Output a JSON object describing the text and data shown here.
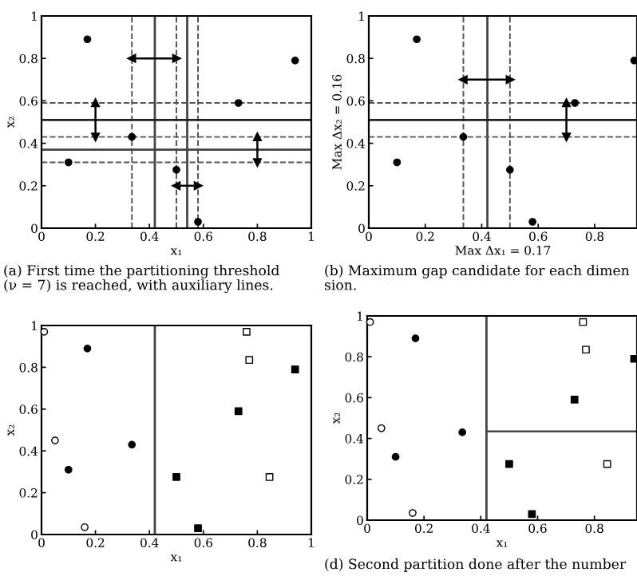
{
  "chart_data": [
    {
      "type": "scatter",
      "xlabel": "x₁",
      "ylabel": "x₂",
      "xlim": [
        0,
        1
      ],
      "ylim": [
        0,
        1
      ],
      "xticks": [
        0,
        0.2,
        0.4,
        0.6,
        0.8,
        1
      ],
      "yticks": [
        0,
        0.2,
        0.4,
        0.6,
        0.8,
        1
      ],
      "marker": "circle",
      "annotations": [
        "(a) First time the partitioning threshold\n(ν = 7) is reached, with auxiliary lines."
      ],
      "series": [
        {
          "color": "#000000",
          "x": [
            0.1,
            0.17,
            0.335,
            0.5,
            0.58,
            0.73,
            0.94
          ],
          "values": [
            0.31,
            0.89,
            0.43,
            0.275,
            0.03,
            0.59,
            0.79
          ]
        },
        {
          "type": "line",
          "marker": "triangle",
          "color": "#000000",
          "x": [
            0.335,
            0.5
          ],
          "values": [
            0.8,
            0.8
          ]
        },
        {
          "type": "line",
          "marker": "triangle",
          "color": "#000000",
          "x": [
            0.5,
            0.58
          ],
          "values": [
            0.2,
            0.2
          ]
        },
        {
          "type": "line",
          "marker": "triangle",
          "color": "#000000",
          "x": [
            0.2,
            0.2
          ],
          "values": [
            0.43,
            0.59
          ]
        },
        {
          "type": "line",
          "marker": "triangle",
          "color": "#000000",
          "x": [
            0.8,
            0.8
          ],
          "values": [
            0.31,
            0.43
          ]
        }
      ],
      "ref_lines": [
        {
          "axis": "x",
          "value": 0.42,
          "color": "#444444",
          "line_style": "solid"
        },
        {
          "axis": "x",
          "value": 0.54,
          "color": "#444444",
          "line_style": "solid"
        },
        {
          "axis": "x",
          "value": 0.335,
          "color": "#555555",
          "line_style": "dashed"
        },
        {
          "axis": "x",
          "value": 0.5,
          "color": "#555555",
          "line_style": "dashed"
        },
        {
          "axis": "x",
          "value": 0.58,
          "color": "#555555",
          "line_style": "dashed"
        },
        {
          "axis": "y",
          "value": 0.51,
          "color": "#222222",
          "line_style": "solid"
        },
        {
          "axis": "y",
          "value": 0.37,
          "color": "#444444",
          "line_style": "solid"
        },
        {
          "axis": "y",
          "value": 0.59,
          "color": "#555555",
          "line_style": "dashed"
        },
        {
          "axis": "y",
          "value": 0.43,
          "color": "#555555",
          "line_style": "dashed"
        },
        {
          "axis": "y",
          "value": 0.31,
          "color": "#555555",
          "line_style": "dashed"
        }
      ]
    },
    {
      "type": "scatter",
      "xlabel": "Max Δx₁ = 0.17",
      "ylabel": "Max Δx₂ = 0.16",
      "xlim": [
        0,
        0.95
      ],
      "ylim": [
        0,
        1
      ],
      "xticks": [
        0,
        0.2,
        0.4,
        0.6,
        0.8
      ],
      "yticks": [
        0,
        0.2,
        0.4,
        0.6,
        0.8,
        1
      ],
      "marker": "circle",
      "annotations": [
        "(b) Maximum gap candidate for each dimen\nsion."
      ],
      "series": [
        {
          "color": "#000000",
          "x": [
            0.1,
            0.17,
            0.335,
            0.5,
            0.58,
            0.73,
            0.94
          ],
          "values": [
            0.31,
            0.89,
            0.43,
            0.275,
            0.03,
            0.59,
            0.79
          ]
        },
        {
          "type": "line",
          "marker": "triangle",
          "color": "#000000",
          "x": [
            0.335,
            0.5
          ],
          "values": [
            0.7,
            0.7
          ]
        },
        {
          "type": "line",
          "marker": "triangle",
          "color": "#000000",
          "x": [
            0.7,
            0.7
          ],
          "values": [
            0.43,
            0.59
          ]
        }
      ],
      "ref_lines": [
        {
          "axis": "x",
          "value": 0.42,
          "color": "#444444",
          "line_style": "solid"
        },
        {
          "axis": "x",
          "value": 0.335,
          "color": "#555555",
          "line_style": "dashed"
        },
        {
          "axis": "x",
          "value": 0.5,
          "color": "#555555",
          "line_style": "dashed"
        },
        {
          "axis": "y",
          "value": 0.51,
          "color": "#222222",
          "line_style": "solid"
        },
        {
          "axis": "y",
          "value": 0.59,
          "color": "#555555",
          "line_style": "dashed"
        },
        {
          "axis": "y",
          "value": 0.43,
          "color": "#555555",
          "line_style": "dashed"
        }
      ]
    },
    {
      "type": "scatter",
      "xlabel": "x₁",
      "ylabel": "x₂",
      "xlim": [
        0,
        1
      ],
      "ylim": [
        0,
        1
      ],
      "xticks": [
        0,
        0.2,
        0.4,
        0.6,
        0.8,
        1
      ],
      "yticks": [
        0,
        0.2,
        0.4,
        0.6,
        0.8,
        1
      ],
      "series": [
        {
          "color": "#000000",
          "marker": "circle",
          "x": [
            0.1,
            0.17,
            0.335
          ],
          "values": [
            0.31,
            0.89,
            0.43
          ]
        },
        {
          "color": "#000000",
          "marker": "square",
          "x": [
            0.5,
            0.58,
            0.73,
            0.94
          ],
          "values": [
            0.275,
            0.03,
            0.59,
            0.79
          ]
        },
        {
          "color": "#ffffff",
          "marker": "circle",
          "x": [
            0.01,
            0.05,
            0.16
          ],
          "values": [
            0.97,
            0.45,
            0.035
          ]
        },
        {
          "color": "#ffffff",
          "marker": "square",
          "x": [
            0.76,
            0.77,
            0.845
          ],
          "values": [
            0.97,
            0.835,
            0.275
          ]
        }
      ],
      "ref_lines": [
        {
          "axis": "x",
          "value": 0.42,
          "color": "#444444",
          "line_style": "solid"
        }
      ]
    },
    {
      "type": "scatter",
      "xlabel": "x₁",
      "ylabel": "x₂",
      "xlim": [
        0,
        0.95
      ],
      "ylim": [
        0,
        1
      ],
      "xticks": [
        0,
        0.2,
        0.4,
        0.6,
        0.8
      ],
      "yticks": [
        0,
        0.2,
        0.4,
        0.6,
        0.8,
        1
      ],
      "annotations": [
        "(d) Second partition done after the number"
      ],
      "series": [
        {
          "color": "#000000",
          "marker": "circle",
          "x": [
            0.1,
            0.17,
            0.335
          ],
          "values": [
            0.31,
            0.89,
            0.43
          ]
        },
        {
          "color": "#000000",
          "marker": "square",
          "x": [
            0.5,
            0.58,
            0.73,
            0.94
          ],
          "values": [
            0.275,
            0.03,
            0.59,
            0.79
          ]
        },
        {
          "color": "#ffffff",
          "marker": "circle",
          "x": [
            0.01,
            0.05,
            0.16
          ],
          "values": [
            0.97,
            0.45,
            0.035
          ]
        },
        {
          "color": "#ffffff",
          "marker": "square",
          "x": [
            0.76,
            0.77,
            0.845
          ],
          "values": [
            0.97,
            0.835,
            0.275
          ]
        },
        {
          "type": "line",
          "color": "#444444",
          "x": [
            0.42,
            0.95
          ],
          "values": [
            0.435,
            0.435
          ]
        }
      ],
      "ref_lines": [
        {
          "axis": "x",
          "value": 0.42,
          "color": "#444444",
          "line_style": "solid"
        }
      ]
    }
  ]
}
